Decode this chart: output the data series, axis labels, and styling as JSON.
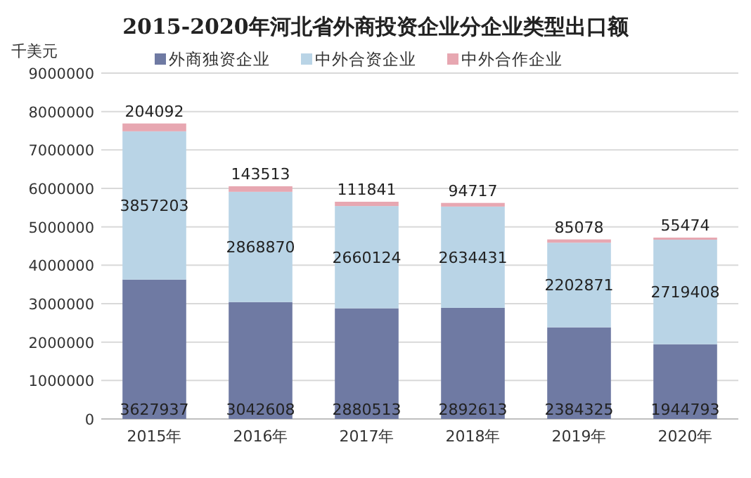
{
  "chart_data": {
    "type": "bar",
    "stacked": true,
    "title": "2015-2020年河北省外商投资企业分企业类型出口额",
    "ylabel": "千美元",
    "categories": [
      "2015年",
      "2016年",
      "2017年",
      "2018年",
      "2019年",
      "2020年"
    ],
    "series": [
      {
        "name": "外商独资企业",
        "color": "#6f7aa3",
        "values": [
          3627937,
          3042608,
          2880513,
          2892613,
          2384325,
          1944793
        ]
      },
      {
        "name": "中外合资企业",
        "color": "#b9d4e6",
        "values": [
          3857203,
          2868870,
          2660124,
          2634431,
          2202871,
          2719408
        ]
      },
      {
        "name": "中外合作企业",
        "color": "#e7a7b1",
        "values": [
          204092,
          143513,
          111841,
          94717,
          85078,
          55474
        ]
      }
    ],
    "ylim": [
      0,
      9000000
    ],
    "yticks": [
      0,
      1000000,
      2000000,
      3000000,
      4000000,
      5000000,
      6000000,
      7000000,
      8000000,
      9000000
    ],
    "grid": "y",
    "legend": "top",
    "data_labels": true
  }
}
